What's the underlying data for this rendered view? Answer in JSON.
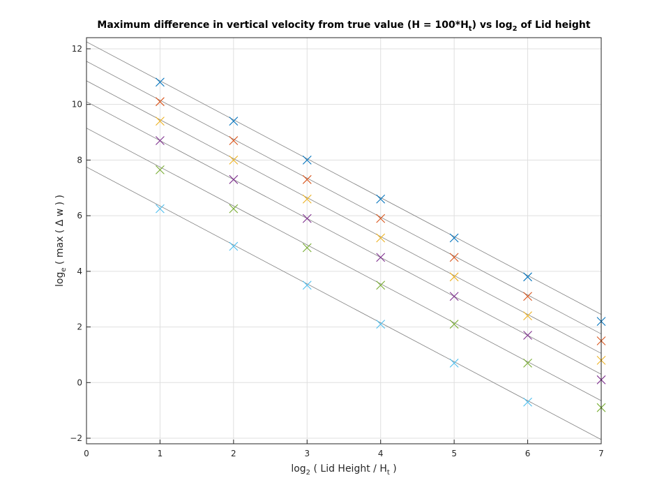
{
  "chart_data": {
    "type": "scatter",
    "title": {
      "prefix": "Maximum difference in vertical velocity from true value (H = 100*H",
      "sub1": "t",
      "middle": ") vs log",
      "sub2": "2",
      "suffix": " of Lid height"
    },
    "xlabel": {
      "prefix": "log",
      "sub1": "2",
      "middle": " ( Lid Height / H",
      "sub2": "t",
      "suffix": " )"
    },
    "ylabel": {
      "prefix": "log",
      "sub": "e",
      "suffix": " ( max ( Δ w ) )"
    },
    "xlim": [
      0,
      7
    ],
    "ylim": [
      -2.2,
      12.4
    ],
    "xticks": [
      0,
      1,
      2,
      3,
      4,
      5,
      6,
      7
    ],
    "yticks": [
      -2,
      0,
      2,
      4,
      6,
      8,
      10,
      12
    ],
    "grid": true,
    "marker": "x",
    "fit_line_color": "#808080",
    "series": [
      {
        "color": "#0072BD",
        "x": [
          1,
          2,
          3,
          4,
          5,
          6,
          7
        ],
        "y": [
          10.8,
          9.4,
          8.0,
          6.6,
          5.2,
          3.8,
          2.2
        ],
        "fit": [
          12.25,
          -1.4
        ]
      },
      {
        "color": "#D95319",
        "x": [
          1,
          2,
          3,
          4,
          5,
          6,
          7
        ],
        "y": [
          10.1,
          8.7,
          7.3,
          5.9,
          4.5,
          3.1,
          1.5
        ],
        "fit": [
          11.55,
          -1.4
        ]
      },
      {
        "color": "#EDB120",
        "x": [
          1,
          2,
          3,
          4,
          5,
          6,
          7
        ],
        "y": [
          9.4,
          8.0,
          6.6,
          5.2,
          3.8,
          2.4,
          0.8
        ],
        "fit": [
          10.85,
          -1.4
        ]
      },
      {
        "color": "#7E2F8E",
        "x": [
          1,
          2,
          3,
          4,
          5,
          6,
          7
        ],
        "y": [
          8.7,
          7.3,
          5.9,
          4.5,
          3.1,
          1.7,
          0.1
        ],
        "fit": [
          10.1,
          -1.4
        ]
      },
      {
        "color": "#77AC30",
        "x": [
          1,
          2,
          3,
          4,
          5,
          6,
          7
        ],
        "y": [
          7.65,
          6.25,
          4.85,
          3.5,
          2.1,
          0.7,
          -0.9
        ],
        "fit": [
          9.15,
          -1.4
        ]
      },
      {
        "color": "#4DBEEE",
        "x": [
          1,
          2,
          3,
          4,
          5,
          6
        ],
        "y": [
          6.25,
          4.9,
          3.5,
          2.1,
          0.7,
          -0.7
        ],
        "fit": [
          7.75,
          -1.4
        ]
      }
    ]
  }
}
